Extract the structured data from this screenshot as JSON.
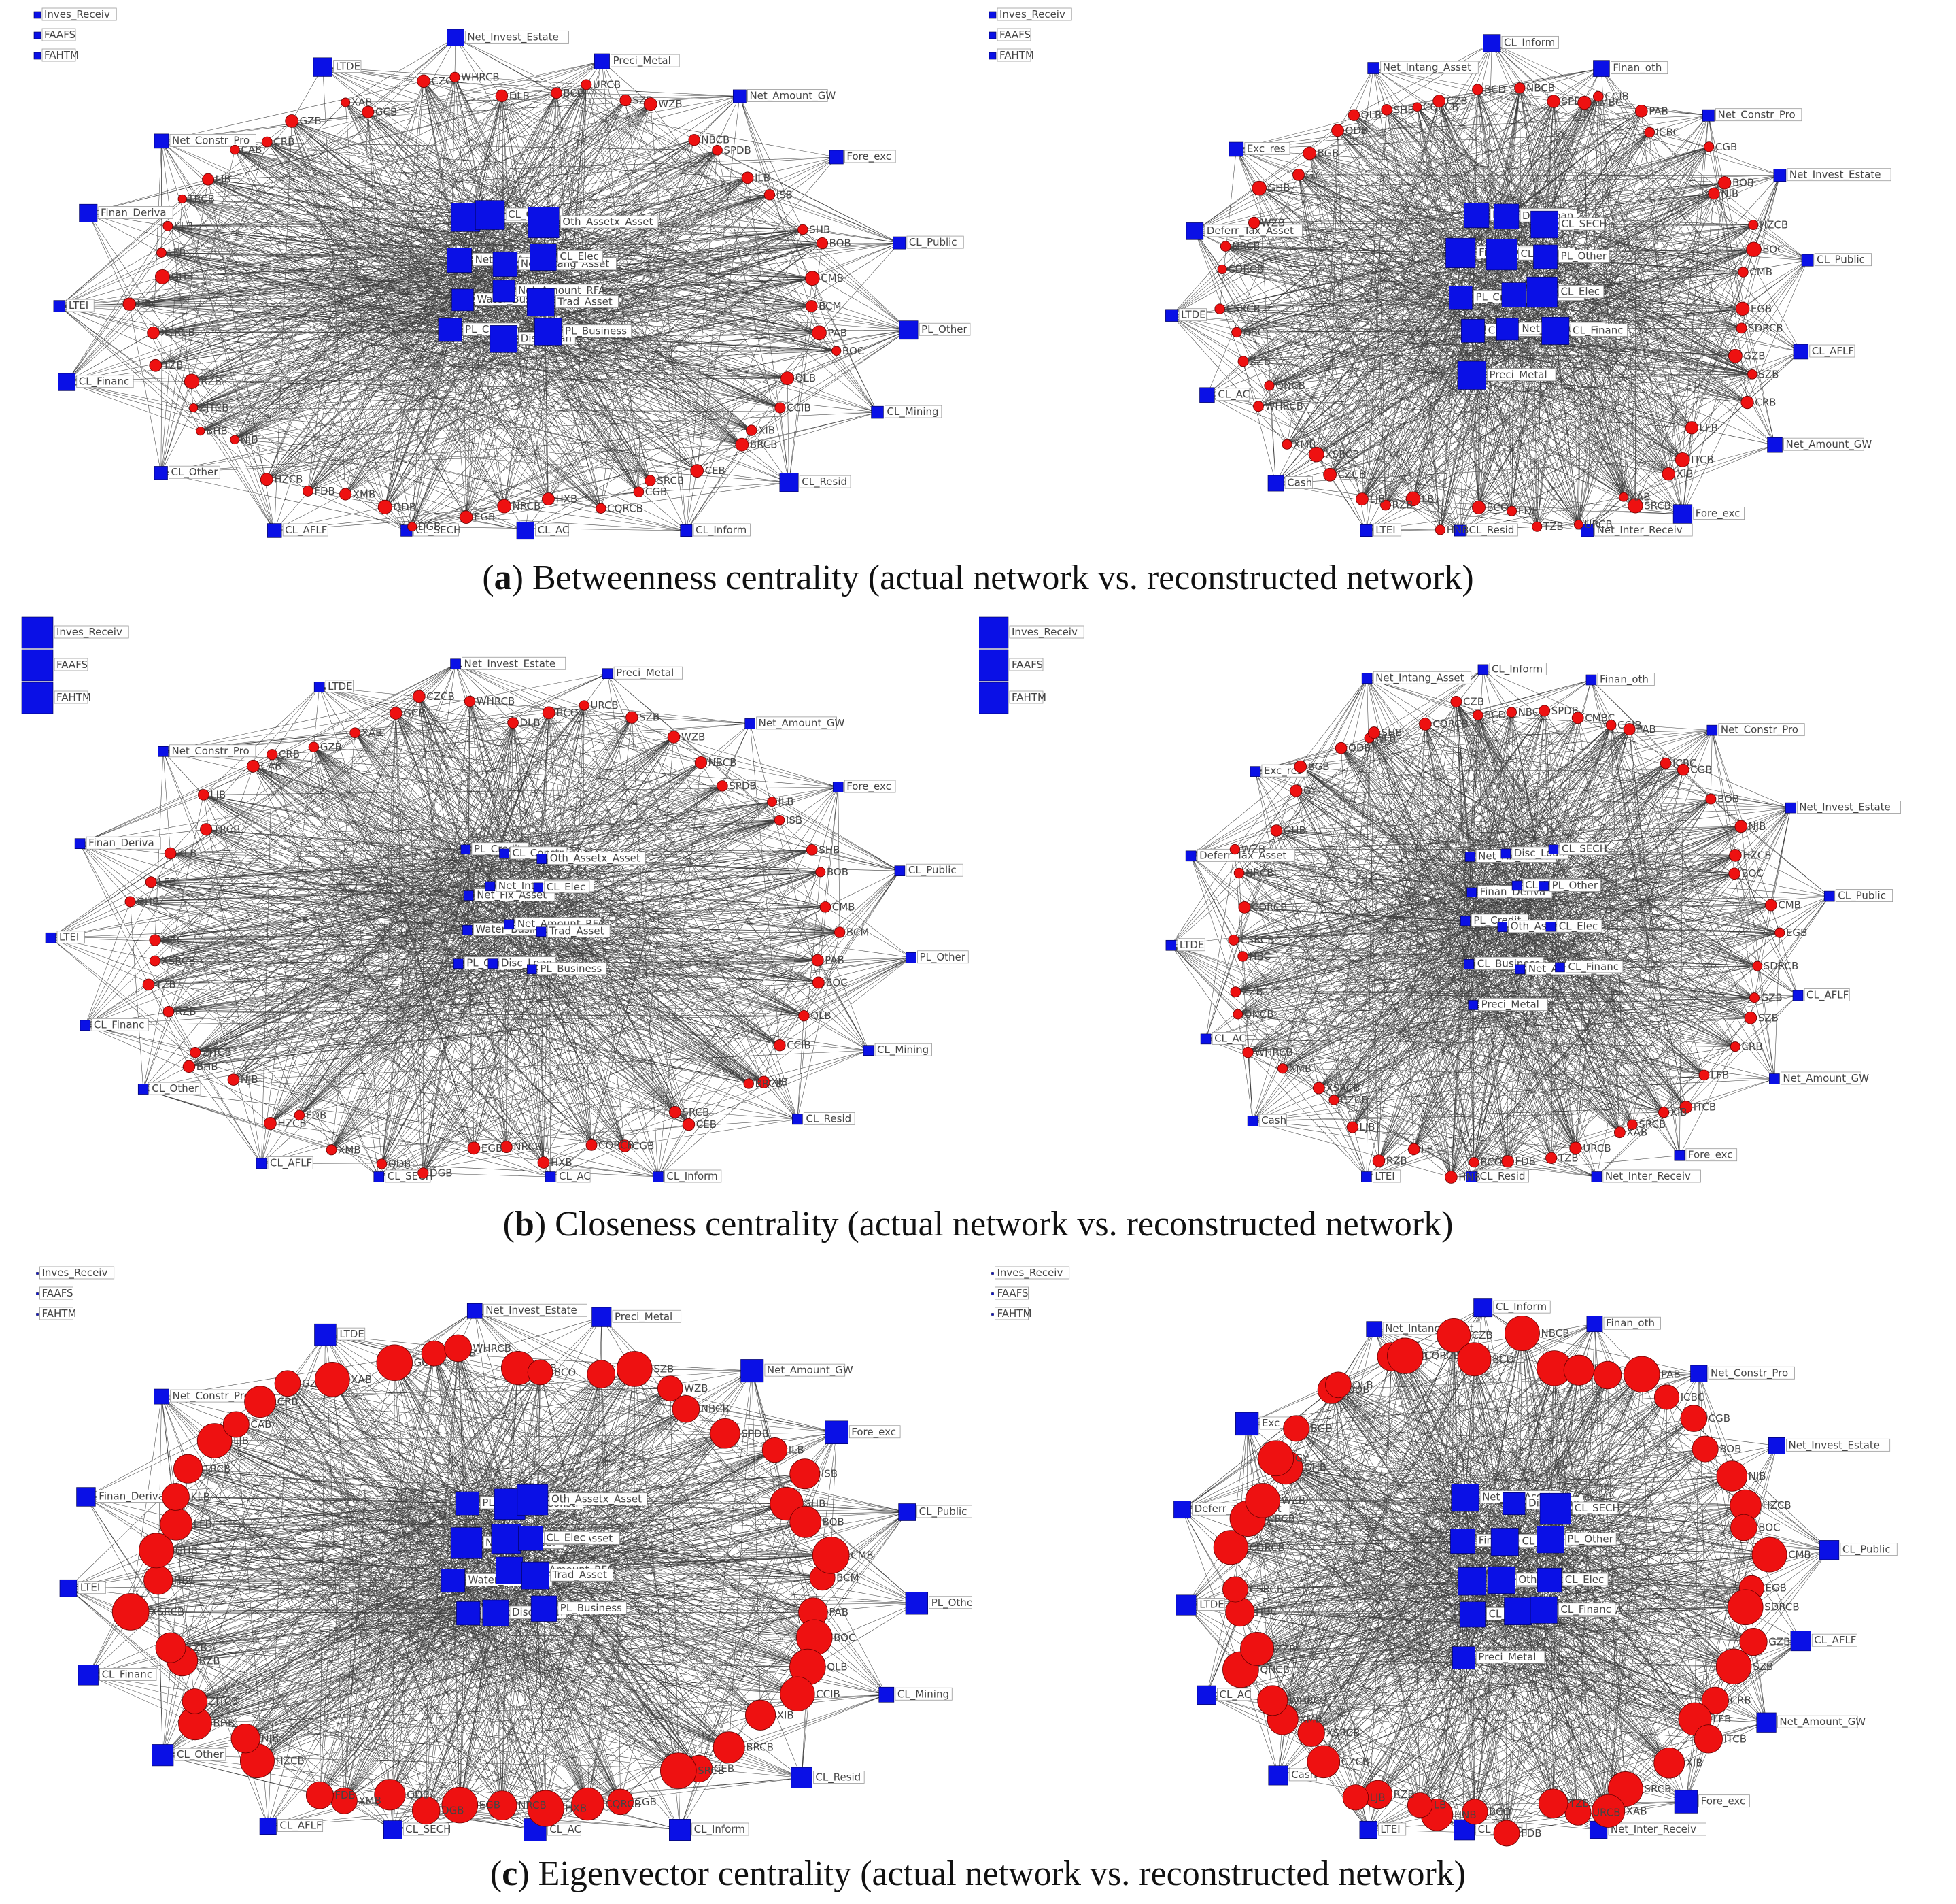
{
  "figure": {
    "rows": [
      {
        "id": "a",
        "caption_letter": "a",
        "caption_text": " Betweenness centrality (actual network vs. reconstructed network)",
        "mode": "betweenness"
      },
      {
        "id": "b",
        "caption_letter": "b",
        "caption_text": " Closeness centrality (actual network vs. reconstructed network)",
        "mode": "closeness"
      },
      {
        "id": "c",
        "caption_letter": "c",
        "caption_text": " Eigenvector centrality (actual network vs. reconstructed network)",
        "mode": "eigenvector"
      }
    ],
    "colors": {
      "bank_node": "#ee1111",
      "item_node": "#0a10e6",
      "edge": "#000000",
      "label_text": "#444444"
    },
    "node_shapes": {
      "bank": "circle",
      "balance_item": "square"
    }
  },
  "actual_network": {
    "isolated_items": [
      "Inves_Receiv",
      "FAAFS",
      "FAHTM"
    ],
    "periphery_items": [
      "LTDE",
      "Net_Invest_Estate",
      "Preci_Metal",
      "Net_Amount_GW",
      "Fore_exc",
      "CL_Public",
      "PL_Other",
      "CL_Mining",
      "CL_Resid",
      "CL_Inform",
      "CL_AC",
      "CL_SECH",
      "CL_AFLF",
      "CL_Other",
      "CL_Financ",
      "LTEI",
      "Finan_Deriva",
      "Net_Constr_Pro"
    ],
    "core_items": [
      "PL_Credit",
      "CL_Constr",
      "Oth_Assetx_Asset",
      "Net_Fix_Asset",
      "Net_Intang_Asset",
      "CL_Elec",
      "Water_Business",
      "Net_Amount_RFA",
      "Trad_Asset",
      "PL_Consum",
      "Disc_Loan",
      "PL_Business"
    ],
    "banks": [
      "BCM",
      "PAB",
      "BOC",
      "QLB",
      "CCIB",
      "XIB",
      "BRCB",
      "CEB",
      "SRCB",
      "CGB",
      "CQRCB",
      "HXB",
      "NRCB",
      "EGB",
      "DGB",
      "QDB",
      "XMB",
      "FDB",
      "HZCB",
      "NJB",
      "BHB",
      "ZJTCB",
      "RZB",
      "TZB",
      "XSRCB",
      "HBC",
      "GHB",
      "LFB",
      "KLB",
      "TRCB",
      "LJB",
      "CAB",
      "CRB",
      "GZB",
      "XAB",
      "GCB",
      "CZCB",
      "WHRCB",
      "DLB",
      "BCO",
      "URCB",
      "SZB",
      "WZB",
      "NBCB",
      "SPDB",
      "ILB",
      "ISB",
      "SHB",
      "BOB",
      "CMB"
    ]
  },
  "reconstructed_network": {
    "isolated_items": [
      "Inves_Receiv",
      "FAAFS",
      "FAHTM"
    ],
    "periphery_items": [
      "Net_Intang_Asset",
      "CL_Inform",
      "Finan_oth",
      "Net_Constr_Pro",
      "Net_Invest_Estate",
      "CL_Public",
      "CL_AFLF",
      "Net_Amount_GW",
      "Fore_exc",
      "Net_Inter_Receiv",
      "CL_Resid",
      "LTEI",
      "Cash",
      "CL_AC",
      "LTDE",
      "Deferr_Tax_Asset",
      "Exc_res"
    ],
    "core_items": [
      "Net_Fix_Asset",
      "Disc_Loan",
      "CL_SECH",
      "Finan_Deriva",
      "CL_Mining",
      "PL_Other",
      "PL_Credit",
      "Oth_Asset",
      "CL_Elec",
      "CL_Business",
      "Net_Amount_RFA",
      "CL_Financ",
      "Preci_Metal"
    ],
    "banks": [
      "EGB",
      "SDRCB",
      "GZB",
      "SZB",
      "CRB",
      "LFB",
      "ITCB",
      "XIB",
      "SRCB",
      "XAB",
      "URCB",
      "TZB",
      "FDB",
      "BCO",
      "HNB",
      "LB",
      "RZB",
      "LJB",
      "CZCB",
      "XSRCB",
      "XMB",
      "WHRCB",
      "QNCB",
      "ZZB",
      "HBC",
      "CSRCB",
      "CDRCB",
      "NRCB",
      "WZB",
      "GHB",
      "GY",
      "BGB",
      "QDB",
      "QLB",
      "SHB",
      "CQRCB",
      "CZB",
      "BCD",
      "NBCB",
      "SPDB",
      "CMBC",
      "CCIB",
      "PAB",
      "ICBC",
      "CGB",
      "BOB",
      "NJB",
      "HZCB",
      "BOC",
      "CMB"
    ]
  }
}
